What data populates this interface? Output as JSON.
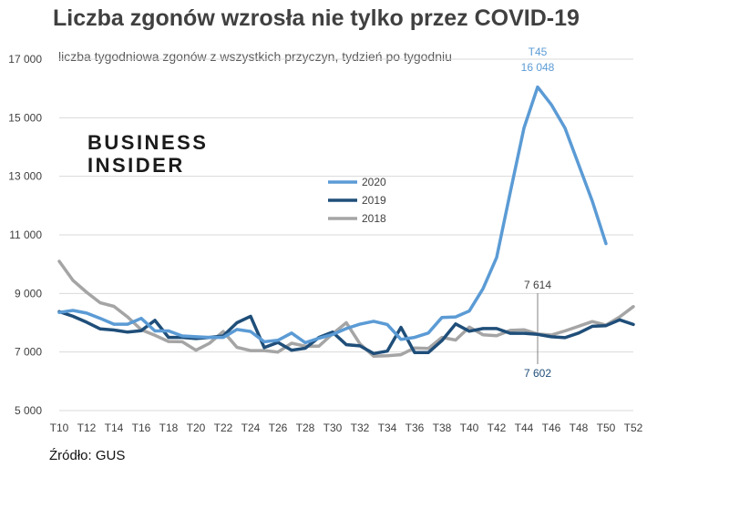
{
  "title": "Liczba zgonów wzrosła nie tylko przez COVID-19",
  "subtitle": "liczba tygodniowa zgonów z wszystkich przyczyn, tydzień po tygodniu",
  "logo": {
    "line1": "BUSINESS",
    "line2": "INSIDER"
  },
  "source": "Źródło: GUS",
  "colors": {
    "2020": "#5b9bd5",
    "2019": "#1f4e79",
    "2018": "#a5a5a5",
    "grid": "#d9d9d9",
    "text": "#404040"
  },
  "chart_data": {
    "type": "line",
    "xlabel": "",
    "ylabel": "",
    "ylim": [
      5000,
      17000
    ],
    "yticks": [
      5000,
      7000,
      9000,
      11000,
      13000,
      15000,
      17000
    ],
    "ytick_labels": [
      "5 000",
      "7 000",
      "9 000",
      "11 000",
      "13 000",
      "15 000",
      "17 000"
    ],
    "grid": true,
    "legend_position": "center",
    "x": [
      "T10",
      "T11",
      "T12",
      "T13",
      "T14",
      "T15",
      "T16",
      "T17",
      "T18",
      "T19",
      "T20",
      "T21",
      "T22",
      "T23",
      "T24",
      "T25",
      "T26",
      "T27",
      "T28",
      "T29",
      "T30",
      "T31",
      "T32",
      "T33",
      "T34",
      "T35",
      "T36",
      "T37",
      "T38",
      "T39",
      "T40",
      "T41",
      "T42",
      "T43",
      "T44",
      "T45",
      "T46",
      "T47",
      "T48",
      "T49",
      "T50",
      "T51",
      "T52"
    ],
    "xtick_labels": [
      "T10",
      "T12",
      "T14",
      "T16",
      "T18",
      "T20",
      "T22",
      "T24",
      "T26",
      "T28",
      "T30",
      "T32",
      "T34",
      "T36",
      "T38",
      "T40",
      "T42",
      "T44",
      "T46",
      "T48",
      "T50",
      "T52"
    ],
    "series": [
      {
        "name": "2020",
        "values": [
          8350,
          8420,
          8330,
          8150,
          7950,
          7950,
          8150,
          7720,
          7720,
          7550,
          7520,
          7500,
          7500,
          7770,
          7700,
          7350,
          7400,
          7650,
          7320,
          7470,
          7600,
          7800,
          7950,
          8050,
          7940,
          7430,
          7500,
          7650,
          8180,
          8200,
          8400,
          9160,
          10230,
          12460,
          14650,
          16048,
          15450,
          14650,
          13400,
          12150,
          10700,
          null,
          null
        ]
      },
      {
        "name": "2019",
        "values": [
          8380,
          8220,
          8020,
          7790,
          7750,
          7680,
          7730,
          8080,
          7500,
          7500,
          7460,
          7500,
          7550,
          8000,
          8220,
          7150,
          7330,
          7060,
          7130,
          7500,
          7680,
          7250,
          7210,
          6950,
          7030,
          7840,
          6980,
          6980,
          7390,
          7960,
          7710,
          7800,
          7800,
          7640,
          7640,
          7602,
          7520,
          7490,
          7650,
          7880,
          7900,
          8100,
          7940
        ]
      },
      {
        "name": "2018",
        "values": [
          10100,
          9450,
          9040,
          8680,
          8560,
          8200,
          7760,
          7570,
          7360,
          7350,
          7060,
          7300,
          7700,
          7160,
          7050,
          7050,
          7000,
          7300,
          7200,
          7200,
          7620,
          8000,
          7280,
          6860,
          6870,
          6910,
          7140,
          7120,
          7500,
          7410,
          7850,
          7590,
          7560,
          7740,
          7760,
          7614,
          7580,
          7720,
          7880,
          8040,
          7920,
          8200,
          8550
        ]
      }
    ],
    "annotations": [
      {
        "series": "2020",
        "x": "T45",
        "label_week": "T45",
        "label_value": "16 048"
      },
      {
        "series": "2018",
        "x": "T45",
        "label_value": "7 614"
      },
      {
        "series": "2019",
        "x": "T45",
        "label_value": "7 602"
      }
    ]
  }
}
